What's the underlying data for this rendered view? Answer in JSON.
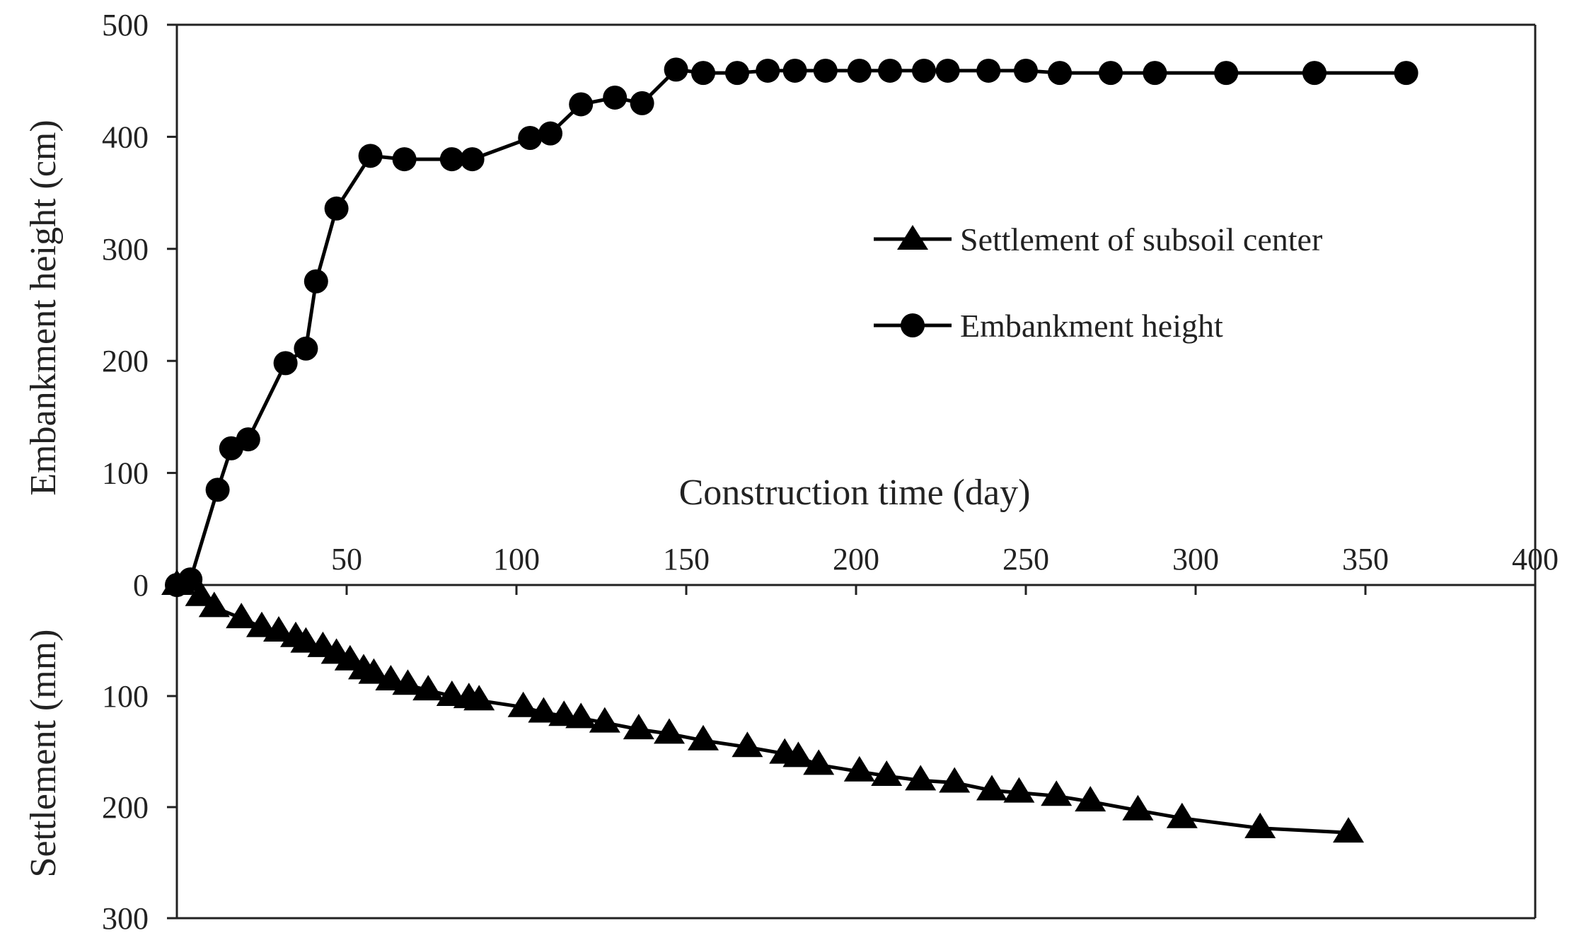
{
  "chart_data": {
    "type": "line",
    "x": {
      "label": "Construction time (day)",
      "ticks": [
        50,
        100,
        150,
        200,
        250,
        300,
        350,
        400
      ],
      "range": [
        0,
        400
      ]
    },
    "top_axis": {
      "label": "Embankment height (cm)",
      "ticks": [
        0,
        100,
        200,
        300,
        400,
        500
      ],
      "range": [
        0,
        500
      ]
    },
    "bottom_axis": {
      "label": "Settlement (mm)",
      "ticks": [
        100,
        200,
        300
      ],
      "range": [
        0,
        300
      ]
    },
    "legend": {
      "position": "center-right",
      "entries": [
        {
          "label": "Settlement of subsoil center",
          "marker": "triangle"
        },
        {
          "label": "Embankment height",
          "marker": "circle"
        }
      ]
    },
    "series": [
      {
        "name": "Settlement of subsoil center",
        "unit": "mm",
        "axis": "bottom",
        "x": [
          0,
          7,
          11,
          19,
          25,
          30,
          35,
          38,
          43,
          47,
          51,
          55,
          58,
          63,
          68,
          74,
          81,
          86,
          89,
          102,
          108,
          114,
          119,
          126,
          136,
          145,
          155,
          168,
          179,
          183,
          189,
          201,
          209,
          219,
          229,
          240,
          248,
          259,
          269,
          283,
          296,
          319,
          345
        ],
        "values": [
          0,
          10,
          20,
          30,
          38,
          42,
          47,
          52,
          56,
          62,
          68,
          76,
          80,
          86,
          90,
          95,
          100,
          102,
          104,
          110,
          115,
          118,
          120,
          124,
          130,
          134,
          140,
          146,
          152,
          155,
          162,
          168,
          172,
          176,
          178,
          185,
          187,
          190,
          195,
          203,
          210,
          219,
          223
        ]
      },
      {
        "name": "Embankment height",
        "unit": "cm",
        "axis": "top",
        "x": [
          0,
          4,
          12,
          16,
          21,
          32,
          38,
          41,
          47,
          57,
          67,
          81,
          87,
          104,
          110,
          119,
          129,
          137,
          147,
          155,
          165,
          174,
          182,
          191,
          201,
          210,
          220,
          227,
          239,
          250,
          260,
          275,
          288,
          309,
          335,
          362
        ],
        "values": [
          0,
          5,
          85,
          122,
          130,
          198,
          211,
          271,
          336,
          383,
          380,
          380,
          380,
          399,
          403,
          429,
          435,
          430,
          460,
          457,
          457,
          459,
          459,
          459,
          459,
          459,
          459,
          459,
          459,
          459,
          457,
          457,
          457,
          457,
          457,
          457
        ]
      }
    ]
  }
}
